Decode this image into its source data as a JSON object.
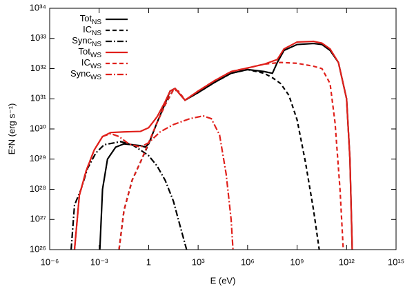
{
  "chart_data": {
    "type": "line",
    "xlabel": "E (eV)",
    "ylabel": "E²N (erg s⁻¹)",
    "xscale": "log",
    "yscale": "log",
    "grid": false,
    "legend": "upper left",
    "xlim": [
      1e-06,
      1000000000000000.0
    ],
    "xticks": [
      {
        "value": 1e-06,
        "label": "10⁻⁶"
      },
      {
        "value": 0.001,
        "label": "10⁻³"
      },
      1,
      {
        "value": 1000.0,
        "label": "10³"
      },
      {
        "value": 1000000.0,
        "label": "10⁶"
      },
      {
        "value": 1000000000.0,
        "label": "10⁹"
      },
      {
        "value": 1000000000000.0,
        "label": "10¹²"
      },
      {
        "value": 1000000000000000.0,
        "label": "10¹⁵"
      }
    ],
    "ylim": [
      1e+26,
      1e+34
    ],
    "yticks": [
      {
        "value": 1e+26,
        "label": "10²⁶"
      },
      {
        "value": 1e+27,
        "label": "10²⁷"
      },
      {
        "value": 1e+28,
        "label": "10²⁸"
      },
      {
        "value": 1e+29,
        "label": "10²⁹"
      },
      {
        "value": 1e+30,
        "label": "10³⁰"
      },
      {
        "value": 1e+31,
        "label": "10³¹"
      },
      {
        "value": 1e+32,
        "label": "10³²"
      },
      {
        "value": 1e+33,
        "label": "10³³"
      },
      {
        "value": 1e+34,
        "label": "10³⁴"
      }
    ],
    "series": [
      {
        "name": "Tot",
        "name_sub": "NS",
        "color": "#000000",
        "dash": "solid",
        "x": [
          0.0011,
          0.0016,
          0.0032,
          0.01,
          0.032,
          0.32,
          0.63,
          1,
          3.2,
          10,
          20,
          40,
          80,
          160,
          1000,
          10000.0,
          100000.0,
          1000000.0,
          10000000.0,
          32000000.0,
          63000000.0,
          160000000.0,
          1000000000.0,
          10000000000.0,
          32000000000.0,
          100000000000.0,
          320000000000.0,
          1000000000000.0,
          1600000000000.0,
          2200000000000.0
        ],
        "values": [
          1e+26,
          1e+28,
          1e+29,
          2.5e+29,
          3.2e+29,
          2.8e+29,
          2.5e+29,
          3.2e+29,
          1.6e+30,
          7e+30,
          1.8e+31,
          2.2e+31,
          1.4e+31,
          9e+30,
          1.6e+31,
          3.5e+31,
          7e+31,
          9.3e+31,
          8e+31,
          7e+31,
          1.6e+32,
          4e+32,
          6.3e+32,
          6.8e+32,
          6.3e+32,
          4e+32,
          1.6e+32,
          1e+31,
          1e+29,
          1e+26
        ]
      },
      {
        "name": "IC",
        "name_sub": "NS",
        "color": "#000000",
        "dash": "dashed",
        "x": [
          0.016,
          0.032,
          0.1,
          0.32,
          1,
          3.2,
          10,
          32,
          63,
          160,
          1000,
          10000.0,
          100000.0,
          1000000.0,
          10000000.0,
          32000000.0,
          100000000.0,
          320000000.0,
          1000000000.0,
          3200000000.0,
          10000000000.0,
          22000000000.0
        ],
        "values": [
          1e+26,
          2e+27,
          2e+28,
          8e+28,
          3.2e+29,
          1.6e+30,
          6.3e+30,
          2e+31,
          1.8e+31,
          9e+30,
          1.6e+31,
          3.5e+31,
          7e+31,
          9.3e+31,
          7e+31,
          5e+31,
          3.2e+31,
          1.3e+31,
          2e+30,
          8e+28,
          2e+27,
          1e+26
        ]
      },
      {
        "name": "Sync",
        "name_sub": "NS",
        "color": "#000000",
        "dash": "dashdot",
        "x": [
          2e-05,
          3.2e-05,
          8e-05,
          0.0002,
          0.00063,
          0.002,
          0.02,
          0.1,
          0.32,
          1,
          3.2,
          10,
          32,
          63,
          200
        ],
        "values": [
          1e+26,
          3e+27,
          1e+28,
          5e+28,
          1.6e+29,
          3e+29,
          3.8e+29,
          3e+29,
          2e+29,
          1.3e+29,
          6e+28,
          2e+28,
          4e+27,
          1e+27,
          1e+26
        ]
      },
      {
        "name": "Tot",
        "name_sub": "WS",
        "color": "#e0201b",
        "dash": "solid",
        "x": [
          3.2e-05,
          6.3e-05,
          0.00016,
          0.0005,
          0.0016,
          0.005,
          0.032,
          0.32,
          1,
          3.2,
          10,
          20,
          40,
          80,
          160,
          1000,
          10000.0,
          100000.0,
          1000000.0,
          10000000.0,
          63000000.0,
          160000000.0,
          1000000000.0,
          10000000000.0,
          32000000000.0,
          100000000000.0,
          320000000000.0,
          1000000000000.0,
          1600000000000.0,
          2200000000000.0
        ],
        "values": [
          1e+26,
          6.3e+27,
          4e+28,
          2e+29,
          5.6e+29,
          7.6e+29,
          8e+29,
          8.3e+29,
          1.1e+30,
          2.5e+30,
          8e+30,
          1.8e+31,
          2.2e+31,
          1.4e+31,
          9e+30,
          1.8e+31,
          4e+31,
          8e+31,
          1.05e+32,
          1.4e+32,
          2e+32,
          4.5e+32,
          7.6e+32,
          8e+32,
          7e+32,
          4.5e+32,
          1.6e+32,
          1e+31,
          1e+29,
          1e+26
        ]
      },
      {
        "name": "IC",
        "name_sub": "WS",
        "color": "#e0201b",
        "dash": "dashed",
        "x": [
          0.016,
          0.032,
          0.1,
          0.32,
          1,
          3.2,
          10,
          32,
          63,
          160,
          1000,
          10000.0,
          100000.0,
          1000000.0,
          10000000.0,
          100000000.0,
          1000000000.0,
          10000000000.0,
          32000000000.0,
          100000000000.0,
          200000000000.0,
          400000000000.0,
          630000000000.0
        ],
        "values": [
          1e+26,
          2e+27,
          2e+28,
          8e+28,
          3.5e+29,
          1.6e+30,
          6.3e+30,
          2e+31,
          1.8e+31,
          9e+30,
          1.8e+31,
          4e+31,
          8e+31,
          1.05e+32,
          1.4e+32,
          1.6e+32,
          1.5e+32,
          1.2e+32,
          1e+32,
          3.2e+31,
          1.6e+30,
          1e+28,
          1e+26
        ]
      },
      {
        "name": "Sync",
        "name_sub": "WS",
        "color": "#e0201b",
        "dash": "dashdot",
        "x": [
          3.2e-05,
          6.3e-05,
          0.00016,
          0.0005,
          0.0016,
          0.005,
          0.016,
          0.063,
          0.32,
          1,
          5,
          32,
          320,
          2000,
          6300,
          20000.0,
          50000.0,
          100000.0,
          130000.0
        ],
        "values": [
          1e+26,
          6.3e+27,
          4e+28,
          2e+29,
          5.6e+29,
          7e+29,
          5.6e+29,
          3.2e+29,
          2.5e+29,
          3.5e+29,
          8e+29,
          1.4e+30,
          2.2e+30,
          2.7e+30,
          2.2e+30,
          6.3e+29,
          3.2e+28,
          1e+27,
          1e+26
        ]
      }
    ]
  }
}
